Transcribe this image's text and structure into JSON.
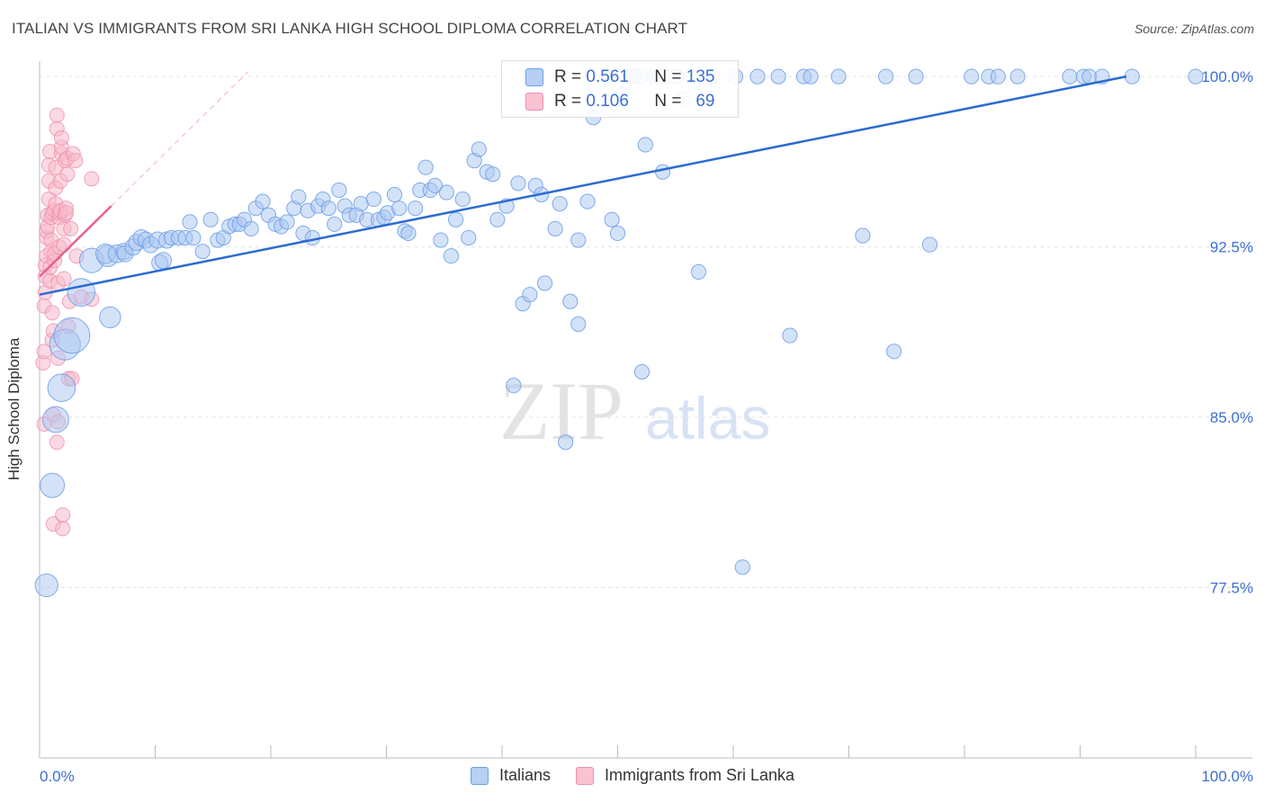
{
  "title": "ITALIAN VS IMMIGRANTS FROM SRI LANKA HIGH SCHOOL DIPLOMA CORRELATION CHART",
  "source": "Source: ZipAtlas.com",
  "watermark": {
    "zip": "ZIP",
    "atlas": "atlas"
  },
  "legend": {
    "r_label": "R =",
    "n_label": "N =",
    "series1": {
      "r": "0.561",
      "n": "135"
    },
    "series2": {
      "r": "0.106",
      "n": "69"
    }
  },
  "bottom_legend": {
    "series1": "Italians",
    "series2": "Immigrants from Sri Lanka"
  },
  "colors": {
    "blue": "#6b9ee8",
    "blue_fill": "#a9c6f2",
    "pink": "#f08fad",
    "pink_fill": "#f6b9cb",
    "blue_line": "#2c6bd1",
    "pink_line": "#e8628c",
    "tick_text": "#3b6fd1"
  },
  "chart_data": {
    "type": "scatter",
    "title": "ITALIAN VS IMMIGRANTS FROM SRI LANKA HIGH SCHOOL DIPLOMA CORRELATION CHART",
    "xlabel": "",
    "ylabel": "High School Diploma",
    "xlim": [
      0,
      100
    ],
    "ylim": [
      70.0,
      100.6
    ],
    "x_tick_labels": [
      "0.0%",
      "100.0%"
    ],
    "y_ticks": [
      100.0,
      92.5,
      85.0,
      77.5
    ],
    "y_tick_labels": [
      "100.0%",
      "92.5%",
      "85.0%",
      "77.5%"
    ],
    "grid": true,
    "legend_position": "top-center",
    "series": [
      {
        "name": "Italians",
        "r": 0.561,
        "n": 135,
        "trend": {
          "x0": 0,
          "y0": 90.4,
          "x1": 94,
          "y1": 100.0
        },
        "points": [
          [
            0.6,
            77.6,
            1.4
          ],
          [
            1.1,
            82.0,
            1.5
          ],
          [
            1.4,
            84.9,
            1.6
          ],
          [
            1.9,
            86.3,
            1.7
          ],
          [
            2.2,
            88.2,
            1.9
          ],
          [
            2.8,
            88.6,
            2.2
          ],
          [
            3.6,
            90.5,
            1.7
          ],
          [
            4.5,
            91.9,
            1.5
          ],
          [
            5.9,
            92.1,
            1.3
          ],
          [
            6.1,
            89.4,
            1.3
          ],
          [
            5.7,
            92.2,
            1.2
          ],
          [
            6.7,
            92.2,
            1.1
          ],
          [
            7.3,
            92.3,
            1.0
          ],
          [
            7.4,
            92.2,
            1.0
          ],
          [
            8.1,
            92.5,
            1.0
          ],
          [
            8.4,
            92.7,
            1.0
          ],
          [
            8.8,
            92.9,
            1.0
          ],
          [
            9.2,
            92.8,
            1.0
          ],
          [
            9.6,
            92.6,
            1.0
          ],
          [
            10.2,
            92.8,
            1.0
          ],
          [
            10.4,
            91.8,
            1.0
          ],
          [
            10.7,
            91.9,
            1.0
          ],
          [
            11.0,
            92.8,
            1.0
          ],
          [
            11.4,
            92.9,
            0.9
          ],
          [
            12.0,
            92.9,
            0.9
          ],
          [
            12.6,
            92.9,
            0.9
          ],
          [
            13.0,
            93.6,
            0.9
          ],
          [
            13.3,
            92.9,
            0.9
          ],
          [
            14.1,
            92.3,
            0.9
          ],
          [
            14.8,
            93.7,
            0.9
          ],
          [
            15.4,
            92.8,
            0.9
          ],
          [
            15.9,
            92.9,
            0.9
          ],
          [
            16.4,
            93.4,
            0.9
          ],
          [
            16.9,
            93.5,
            0.9
          ],
          [
            17.3,
            93.5,
            0.9
          ],
          [
            17.7,
            93.7,
            0.9
          ],
          [
            18.3,
            93.3,
            0.9
          ],
          [
            18.7,
            94.2,
            0.9
          ],
          [
            19.3,
            94.5,
            0.9
          ],
          [
            19.8,
            93.9,
            0.9
          ],
          [
            20.4,
            93.5,
            0.9
          ],
          [
            20.9,
            93.4,
            0.9
          ],
          [
            21.4,
            93.6,
            0.9
          ],
          [
            22.0,
            94.2,
            0.9
          ],
          [
            22.4,
            94.7,
            0.9
          ],
          [
            22.8,
            93.1,
            0.9
          ],
          [
            23.2,
            94.1,
            0.9
          ],
          [
            23.6,
            92.9,
            0.9
          ],
          [
            24.1,
            94.3,
            0.9
          ],
          [
            24.5,
            94.6,
            0.9
          ],
          [
            25.0,
            94.2,
            0.9
          ],
          [
            25.5,
            93.5,
            0.9
          ],
          [
            25.9,
            95.0,
            0.9
          ],
          [
            26.4,
            94.3,
            0.9
          ],
          [
            26.8,
            93.9,
            0.9
          ],
          [
            27.4,
            93.9,
            0.9
          ],
          [
            27.8,
            94.4,
            0.9
          ],
          [
            28.3,
            93.7,
            0.9
          ],
          [
            28.9,
            94.6,
            0.9
          ],
          [
            29.3,
            93.7,
            0.9
          ],
          [
            29.8,
            93.8,
            0.9
          ],
          [
            30.1,
            94.0,
            0.9
          ],
          [
            30.7,
            94.8,
            0.9
          ],
          [
            31.1,
            94.2,
            0.9
          ],
          [
            31.6,
            93.2,
            0.9
          ],
          [
            31.9,
            93.1,
            0.9
          ],
          [
            32.5,
            94.2,
            0.9
          ],
          [
            32.9,
            95.0,
            0.9
          ],
          [
            33.4,
            96.0,
            0.9
          ],
          [
            33.8,
            95.0,
            0.9
          ],
          [
            34.2,
            95.2,
            0.9
          ],
          [
            34.7,
            92.8,
            0.9
          ],
          [
            35.2,
            94.9,
            0.9
          ],
          [
            35.6,
            92.1,
            0.9
          ],
          [
            36.0,
            93.7,
            0.9
          ],
          [
            36.6,
            94.6,
            0.9
          ],
          [
            37.1,
            92.9,
            0.9
          ],
          [
            37.6,
            96.3,
            0.9
          ],
          [
            38.0,
            96.8,
            0.9
          ],
          [
            38.7,
            95.8,
            0.9
          ],
          [
            39.2,
            95.7,
            0.9
          ],
          [
            39.6,
            93.7,
            0.9
          ],
          [
            40.4,
            94.3,
            0.9
          ],
          [
            41.0,
            86.4,
            0.9
          ],
          [
            41.4,
            95.3,
            0.9
          ],
          [
            41.8,
            90.0,
            0.9
          ],
          [
            42.4,
            90.4,
            0.9
          ],
          [
            42.9,
            95.2,
            0.9
          ],
          [
            43.4,
            94.8,
            0.9
          ],
          [
            43.7,
            90.9,
            0.9
          ],
          [
            44.6,
            93.3,
            0.9
          ],
          [
            45.0,
            94.4,
            0.9
          ],
          [
            45.5,
            83.9,
            0.9
          ],
          [
            45.9,
            90.1,
            0.9
          ],
          [
            46.6,
            89.1,
            0.9
          ],
          [
            46.6,
            92.8,
            0.9
          ],
          [
            47.4,
            94.5,
            0.9
          ],
          [
            47.9,
            98.2,
            0.9
          ],
          [
            49.0,
            100.0,
            0.9
          ],
          [
            49.5,
            93.7,
            0.9
          ],
          [
            50.0,
            93.1,
            0.9
          ],
          [
            50.4,
            99.2,
            0.9
          ],
          [
            51.1,
            100.0,
            0.9
          ],
          [
            51.5,
            100.0,
            0.9
          ],
          [
            52.0,
            100.0,
            0.9
          ],
          [
            52.1,
            87.0,
            0.9
          ],
          [
            52.4,
            97.0,
            0.9
          ],
          [
            53.1,
            100.0,
            0.9
          ],
          [
            53.6,
            100.0,
            0.9
          ],
          [
            53.9,
            95.8,
            0.9
          ],
          [
            54.3,
            100.0,
            0.9
          ],
          [
            55.1,
            100.0,
            0.9
          ],
          [
            55.7,
            99.0,
            0.9
          ],
          [
            56.4,
            100.0,
            0.9
          ],
          [
            57.0,
            91.4,
            0.9
          ],
          [
            58.2,
            100.0,
            0.9
          ],
          [
            60.2,
            100.0,
            0.9
          ],
          [
            60.8,
            78.4,
            0.9
          ],
          [
            62.1,
            100.0,
            0.9
          ],
          [
            63.9,
            100.0,
            0.9
          ],
          [
            64.9,
            88.6,
            0.9
          ],
          [
            66.1,
            100.0,
            0.9
          ],
          [
            66.7,
            100.0,
            0.9
          ],
          [
            69.1,
            100.0,
            0.9
          ],
          [
            71.2,
            93.0,
            0.9
          ],
          [
            73.2,
            100.0,
            0.9
          ],
          [
            73.9,
            87.9,
            0.9
          ],
          [
            75.8,
            100.0,
            0.9
          ],
          [
            77.0,
            92.6,
            0.9
          ],
          [
            80.6,
            100.0,
            0.9
          ],
          [
            82.1,
            100.0,
            0.9
          ],
          [
            82.9,
            100.0,
            0.9
          ],
          [
            84.6,
            100.0,
            0.9
          ],
          [
            89.1,
            100.0,
            0.9
          ],
          [
            90.3,
            100.0,
            0.9
          ],
          [
            90.8,
            100.0,
            0.9
          ],
          [
            91.9,
            100.0,
            0.9
          ],
          [
            94.5,
            100.0,
            0.9
          ],
          [
            100.0,
            100.0,
            0.9
          ]
        ]
      },
      {
        "name": "Immigrants from Sri Lanka",
        "r": 0.106,
        "n": 69,
        "trend": {
          "x0": 0,
          "y0": 91.2,
          "x1": 6.2,
          "y1": 94.3
        },
        "trend_dashed_extension": {
          "x0": 6.2,
          "y0": 94.3,
          "x1": 18.0,
          "y1": 100.2
        },
        "points": [
          [
            0.3,
            87.4
          ],
          [
            0.4,
            87.9
          ],
          [
            0.4,
            89.9
          ],
          [
            0.5,
            90.5
          ],
          [
            0.5,
            91.2
          ],
          [
            0.5,
            91.7
          ],
          [
            0.6,
            92.1
          ],
          [
            0.6,
            92.9
          ],
          [
            0.6,
            93.2
          ],
          [
            0.7,
            93.4
          ],
          [
            0.7,
            93.9
          ],
          [
            0.8,
            94.6
          ],
          [
            0.8,
            95.4
          ],
          [
            0.8,
            96.1
          ],
          [
            0.9,
            96.7
          ],
          [
            0.9,
            91.0
          ],
          [
            0.9,
            91.6
          ],
          [
            1.0,
            92.3
          ],
          [
            1.0,
            92.8
          ],
          [
            1.0,
            93.8
          ],
          [
            1.1,
            94.0
          ],
          [
            1.1,
            89.6
          ],
          [
            1.1,
            88.4
          ],
          [
            1.2,
            88.8
          ],
          [
            1.2,
            85.1
          ],
          [
            1.2,
            80.3
          ],
          [
            1.3,
            91.9
          ],
          [
            1.3,
            92.2
          ],
          [
            1.3,
            94.1
          ],
          [
            1.4,
            94.4
          ],
          [
            1.4,
            95.1
          ],
          [
            1.4,
            96.0
          ],
          [
            1.5,
            97.7
          ],
          [
            1.5,
            98.3
          ],
          [
            1.5,
            83.9
          ],
          [
            1.6,
            84.8
          ],
          [
            1.6,
            87.6
          ],
          [
            1.6,
            90.9
          ],
          [
            1.7,
            92.5
          ],
          [
            1.7,
            93.8
          ],
          [
            1.7,
            94.0
          ],
          [
            1.8,
            94.1
          ],
          [
            1.8,
            95.4
          ],
          [
            1.9,
            96.6
          ],
          [
            1.9,
            96.9
          ],
          [
            1.9,
            97.3
          ],
          [
            2.0,
            80.1
          ],
          [
            2.0,
            80.7
          ],
          [
            2.1,
            91.1
          ],
          [
            2.1,
            92.6
          ],
          [
            2.1,
            93.3
          ],
          [
            2.2,
            93.9
          ],
          [
            2.2,
            96.3
          ],
          [
            2.3,
            94.2
          ],
          [
            2.3,
            94.0
          ],
          [
            2.4,
            95.7
          ],
          [
            2.4,
            96.4
          ],
          [
            2.5,
            89.0
          ],
          [
            2.5,
            86.7
          ],
          [
            2.6,
            90.1
          ],
          [
            2.7,
            93.3
          ],
          [
            2.8,
            86.7
          ],
          [
            2.9,
            96.6
          ],
          [
            3.1,
            96.3
          ],
          [
            3.2,
            92.1
          ],
          [
            3.6,
            90.3
          ],
          [
            4.5,
            90.2
          ],
          [
            4.5,
            95.5
          ],
          [
            0.4,
            84.7
          ]
        ]
      }
    ]
  }
}
